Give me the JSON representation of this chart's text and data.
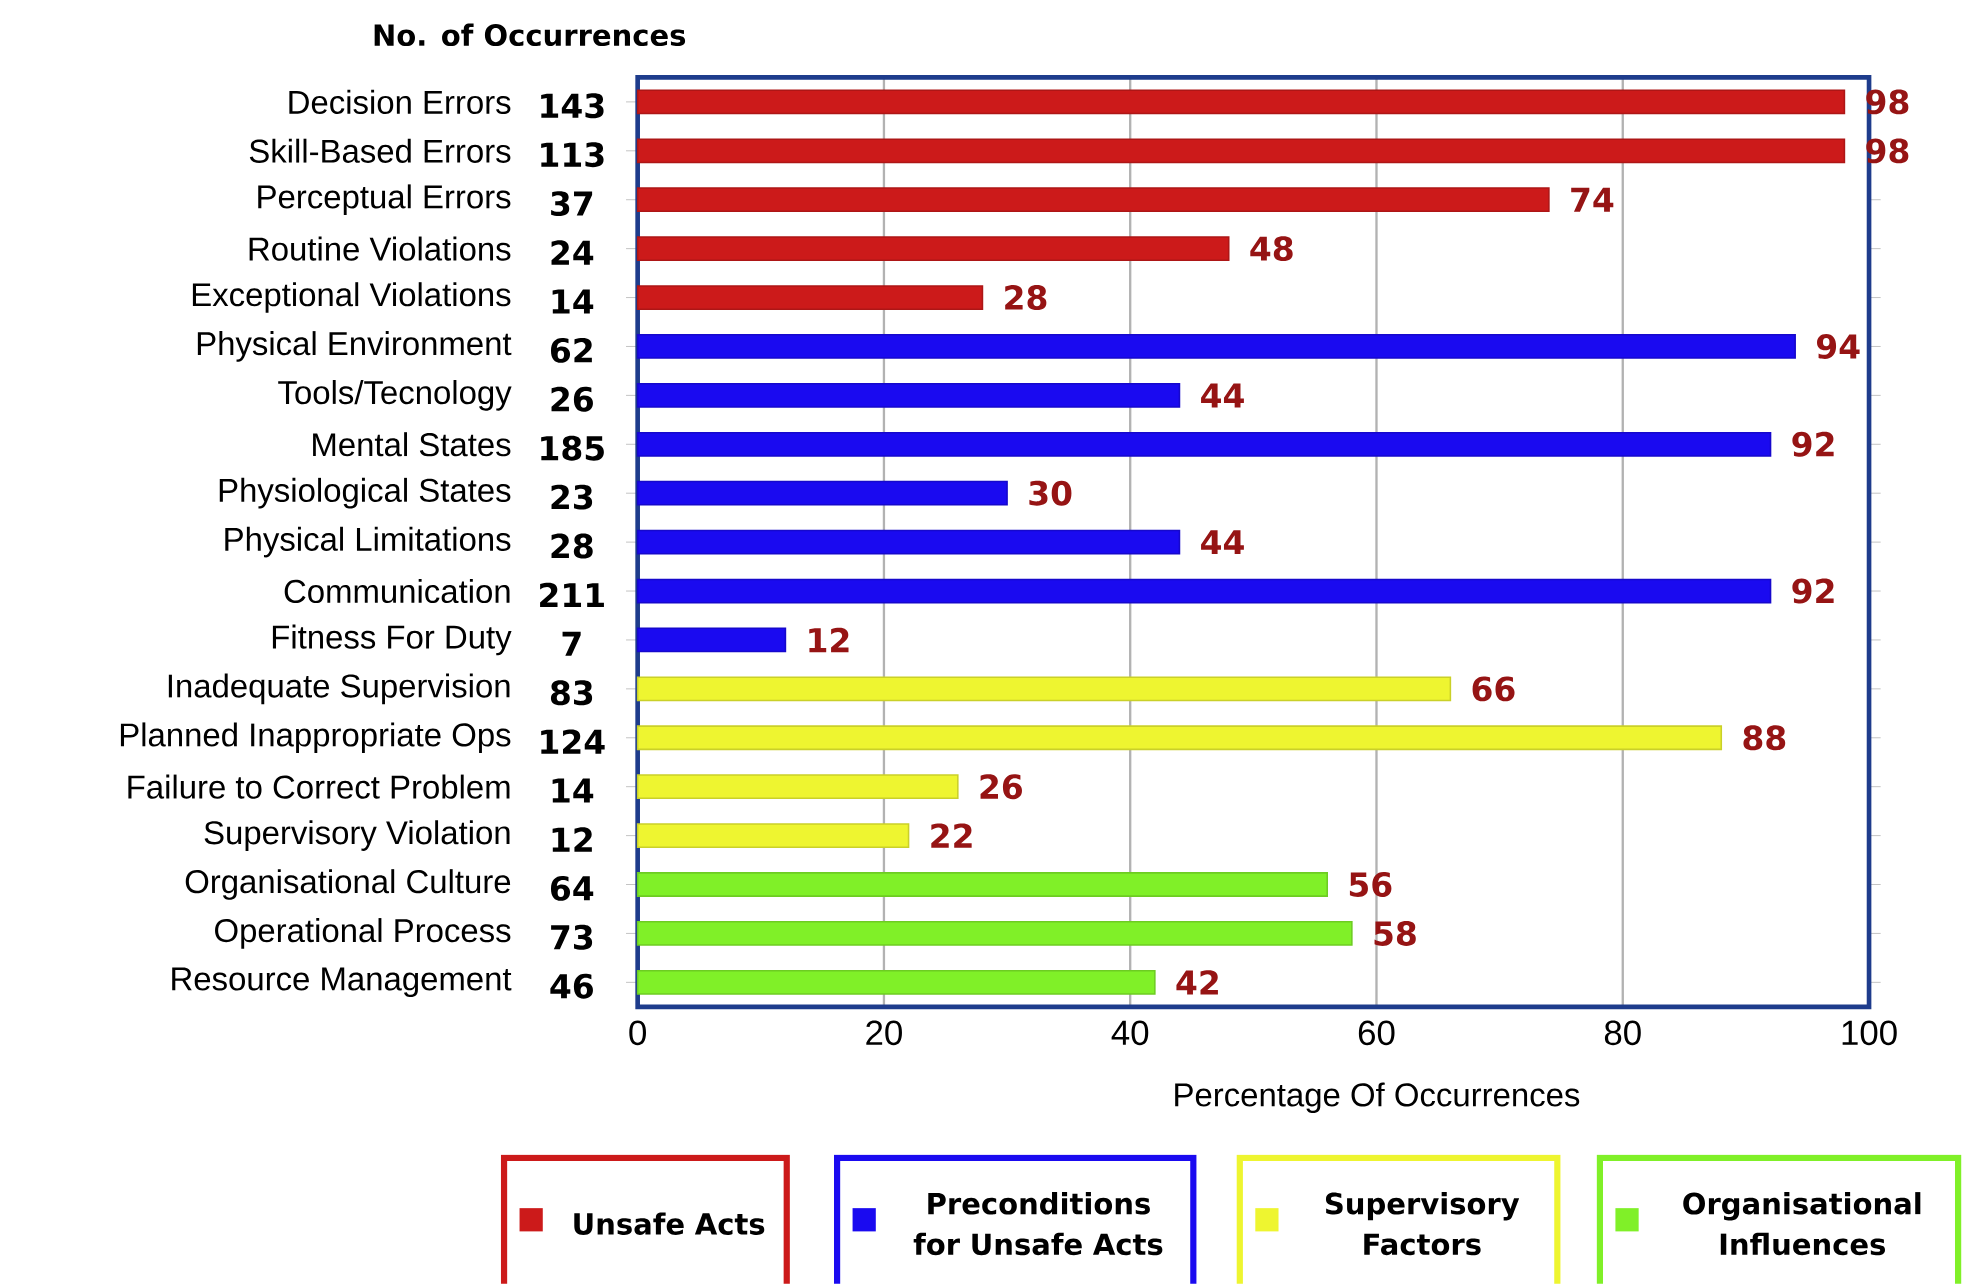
{
  "chart_data": {
    "type": "bar",
    "orientation": "horizontal",
    "title": "No. of Occurrences",
    "xlabel": "Percentage Of Occurrences",
    "categories": [
      "Decision Errors",
      "Skill-Based Errors",
      "Perceptual Errors",
      "Routine Violations",
      "Exceptional Violations",
      "Physical Environment",
      "Tools/Tecnology",
      "Mental States",
      "Physiological States",
      "Physical Limitations",
      "Communication",
      "Fitness For Duty",
      "Inadequate Supervision",
      "Planned Inappropriate Ops",
      "Failure to Correct Problem",
      "Supervisory Violation",
      "Organisational Culture",
      "Operational Process",
      "Resource Management"
    ],
    "series": [
      {
        "name": "Unsafe Acts",
        "color": "#cc1a1a",
        "values": [
          98,
          98,
          74,
          48,
          28,
          null,
          null,
          null,
          null,
          null,
          null,
          null,
          null,
          null,
          null,
          null,
          null,
          null,
          null
        ]
      },
      {
        "name": "Preconditions for Unsafe Acts",
        "color": "#1a0af0",
        "values": [
          null,
          null,
          null,
          null,
          null,
          94,
          44,
          92,
          30,
          44,
          92,
          12,
          null,
          null,
          null,
          null,
          null,
          null,
          null
        ]
      },
      {
        "name": "Supervisory Factors",
        "color": "#eef530",
        "values": [
          null,
          null,
          null,
          null,
          null,
          null,
          null,
          null,
          null,
          null,
          null,
          null,
          66,
          88,
          26,
          22,
          null,
          null,
          null
        ]
      },
      {
        "name": "Organisational Influences",
        "color": "#80f028",
        "values": [
          null,
          null,
          null,
          null,
          null,
          null,
          null,
          null,
          null,
          null,
          null,
          null,
          null,
          null,
          null,
          null,
          56,
          58,
          42
        ]
      }
    ],
    "xlim": [
      0,
      100
    ],
    "xticks": [
      0,
      20,
      40,
      60,
      80,
      100
    ],
    "grid": "x",
    "legend": "bottom",
    "data_labels": true,
    "annotations": [
      "143",
      "113",
      "37",
      "24",
      "14",
      "62",
      "26",
      "185",
      "23",
      "28",
      "211",
      "7",
      "83",
      "124",
      "14",
      "12",
      "64",
      "73",
      "46"
    ]
  }
}
